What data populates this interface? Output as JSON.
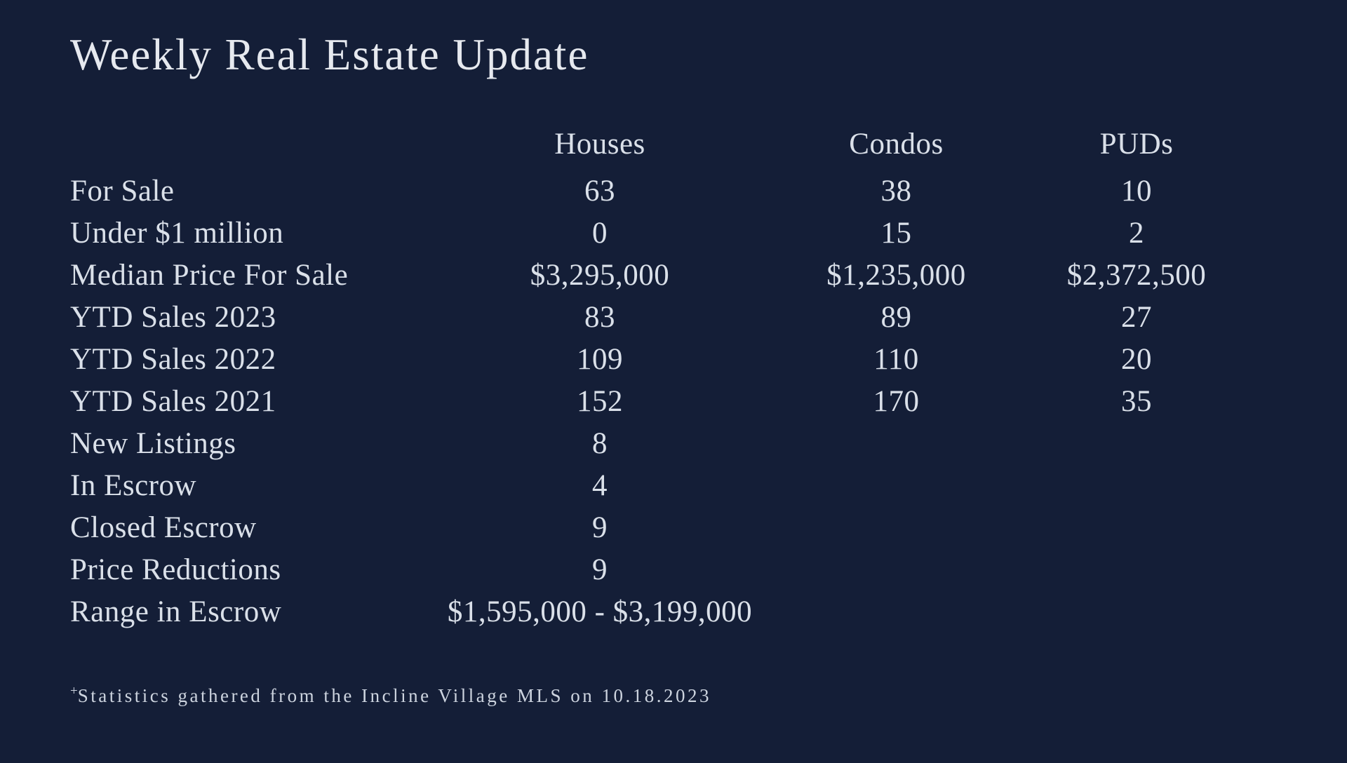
{
  "colors": {
    "background": "#141E37",
    "body_text": "#DAE0E9",
    "title_text": "#E6E9EF",
    "footnote_text": "#CDD4DF"
  },
  "title": "Weekly Real Estate Update",
  "table": {
    "columns": [
      "Houses",
      "Condos",
      "PUDs"
    ],
    "rows": [
      {
        "label": "For Sale",
        "houses": "63",
        "condos": "38",
        "puds": "10"
      },
      {
        "label": "Under $1 million",
        "houses": "0",
        "condos": "15",
        "puds": "2"
      },
      {
        "label": "Median Price For Sale",
        "houses": "$3,295,000",
        "condos": "$1,235,000",
        "puds": "$2,372,500"
      },
      {
        "label": "YTD Sales 2023",
        "houses": "83",
        "condos": "89",
        "puds": "27"
      },
      {
        "label": "YTD Sales 2022",
        "houses": "109",
        "condos": "110",
        "puds": "20"
      },
      {
        "label": "YTD Sales 2021",
        "houses": "152",
        "condos": "170",
        "puds": "35"
      },
      {
        "label": "New Listings",
        "houses": "8",
        "condos": "",
        "puds": ""
      },
      {
        "label": "In Escrow",
        "houses": "4",
        "condos": "",
        "puds": ""
      },
      {
        "label": "Closed Escrow",
        "houses": "9",
        "condos": "",
        "puds": ""
      },
      {
        "label": "Price Reductions",
        "houses": "9",
        "condos": "",
        "puds": ""
      },
      {
        "label": "Range in Escrow",
        "houses": "$1,595,000 - $3,199,000",
        "condos": "",
        "puds": ""
      }
    ]
  },
  "footnote": {
    "marker": "+",
    "text": "Statistics gathered from the Incline Village MLS on 10.18.2023"
  }
}
